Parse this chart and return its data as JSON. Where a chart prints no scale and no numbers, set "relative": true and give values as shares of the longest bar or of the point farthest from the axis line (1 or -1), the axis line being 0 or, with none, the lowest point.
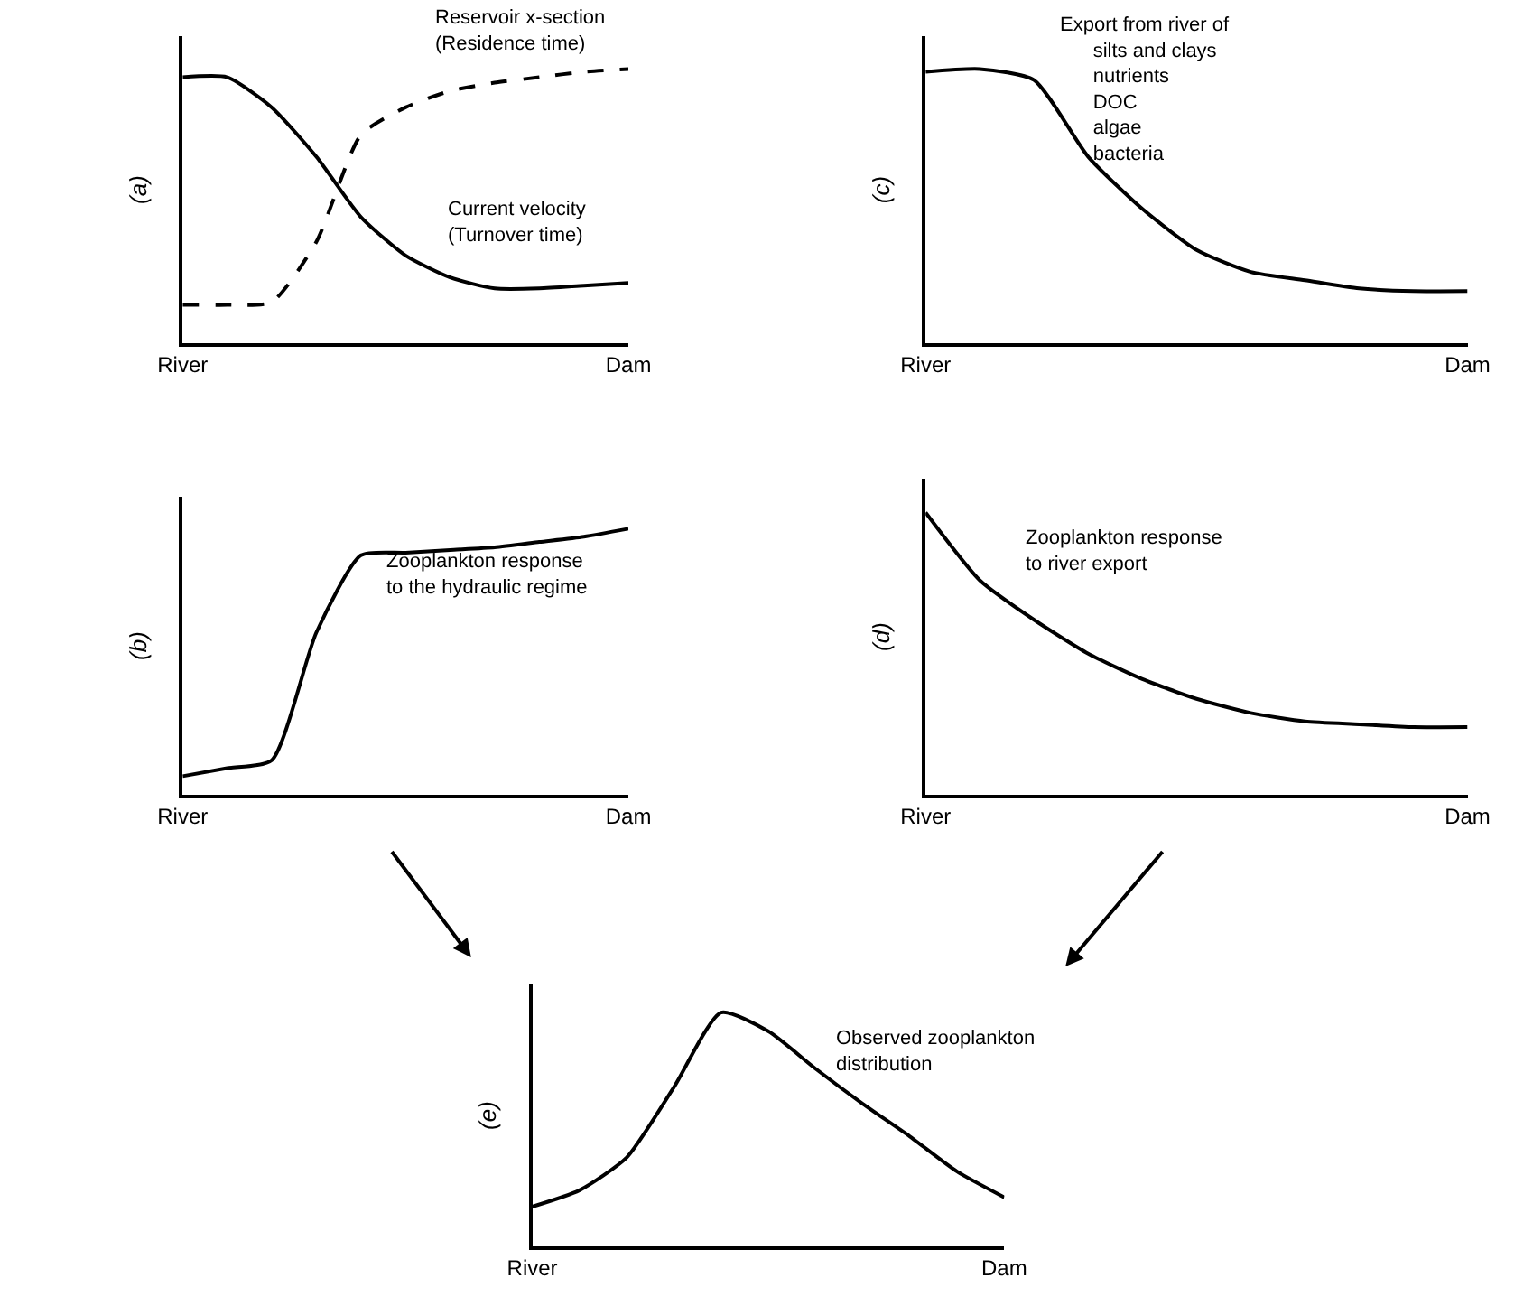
{
  "chart_data": [
    {
      "type": "line",
      "relative": true,
      "ylabel": "(a)",
      "categories": [
        "River",
        null,
        null,
        null,
        null,
        null,
        null,
        null,
        null,
        null,
        "Dam"
      ],
      "series": [
        {
          "color": "#000000",
          "line_style": "dashed",
          "values": [
            0.14,
            0.14,
            0.15,
            0.37,
            0.76,
            0.86,
            0.92,
            0.95,
            0.97,
            0.99,
            1
          ]
        },
        {
          "color": "#000000",
          "line_style": "solid",
          "values": [
            0.97,
            0.97,
            0.86,
            0.68,
            0.46,
            0.32,
            0.24,
            0.2,
            0.2,
            0.21,
            0.22
          ]
        }
      ],
      "annotations": [
        "Reservoir x-section\n(Residence time)",
        "Current velocity\n(Turnover time)"
      ]
    },
    {
      "type": "line",
      "relative": true,
      "ylabel": "(c)",
      "categories": [
        "River",
        null,
        null,
        null,
        null,
        null,
        null,
        null,
        null,
        null,
        "Dam"
      ],
      "series": [
        {
          "color": "#000000",
          "line_style": "solid",
          "values": [
            0.99,
            1,
            0.96,
            0.68,
            0.49,
            0.34,
            0.26,
            0.23,
            0.2,
            0.19,
            0.19
          ]
        }
      ],
      "annotations": [
        "Export from river of\n      silts and clays\n      nutrients\n      DOC\n      algae\n      bacteria"
      ]
    },
    {
      "type": "line",
      "relative": true,
      "ylabel": "(b)",
      "categories": [
        "River",
        null,
        null,
        null,
        null,
        null,
        null,
        null,
        null,
        null,
        "Dam"
      ],
      "series": [
        {
          "color": "#000000",
          "line_style": "solid",
          "values": [
            0.07,
            0.1,
            0.13,
            0.61,
            0.9,
            0.91,
            0.92,
            0.93,
            0.95,
            0.97,
            1
          ]
        }
      ],
      "annotations": [
        "Zooplankton response\nto the hydraulic regime"
      ]
    },
    {
      "type": "line",
      "relative": true,
      "ylabel": "(d)",
      "categories": [
        "River",
        null,
        null,
        null,
        null,
        null,
        null,
        null,
        null,
        null,
        "Dam"
      ],
      "series": [
        {
          "color": "#000000",
          "line_style": "solid",
          "values": [
            1,
            0.76,
            0.62,
            0.5,
            0.41,
            0.34,
            0.29,
            0.26,
            0.25,
            0.24,
            0.24
          ]
        }
      ],
      "annotations": [
        "Zooplankton response\nto river export"
      ]
    },
    {
      "type": "line",
      "relative": true,
      "ylabel": "(e)",
      "categories": [
        "River",
        null,
        null,
        null,
        null,
        null,
        null,
        null,
        null,
        null,
        "Dam"
      ],
      "series": [
        {
          "color": "#000000",
          "line_style": "solid",
          "values": [
            0.17,
            0.24,
            0.38,
            0.68,
            1,
            0.92,
            0.76,
            0.61,
            0.47,
            0.32,
            0.21
          ]
        }
      ],
      "annotations": [
        "Observed zooplankton\ndistribution"
      ]
    }
  ]
}
